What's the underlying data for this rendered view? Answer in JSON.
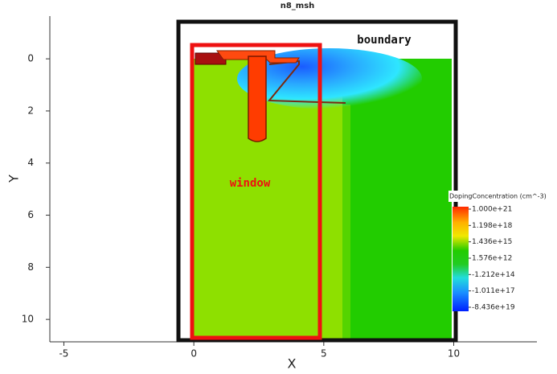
{
  "chart_data": {
    "type": "mesh",
    "title": "n8_msh",
    "x_label": "X",
    "y_label": "Y",
    "xlim": [
      -5.54,
      13.2
    ],
    "ylim": [
      -1.64,
      10.86
    ],
    "xticks": [
      -5,
      0,
      5,
      10
    ],
    "yticks": [
      0,
      2,
      4,
      6,
      8,
      10
    ],
    "annotations": [
      "boundary",
      "window"
    ],
    "legend": {
      "title": "DopingConcentration (cm^-3)",
      "labels": [
        "1.000e+21",
        "1.198e+18",
        "1.436e+15",
        "1.576e+12",
        "-1.212e+14",
        "-1.011e+17",
        "-8.436e+19"
      ]
    }
  }
}
